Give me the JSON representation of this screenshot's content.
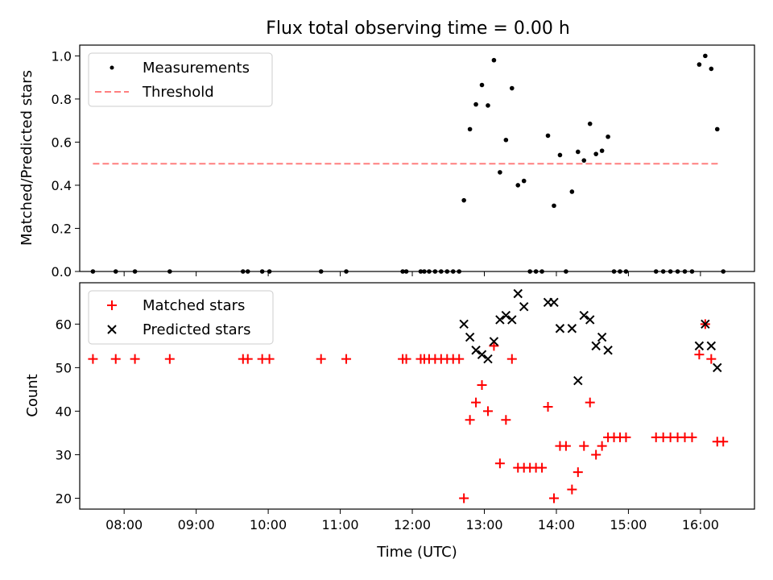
{
  "chart_data": [
    {
      "type": "scatter",
      "title": "Flux total observing time = 0.00 h",
      "ylabel": "Matched/Predicted stars",
      "xlabel": "",
      "x_is_time_of_day": true,
      "xlim": [
        "07:23",
        "16:45"
      ],
      "ylim": [
        0,
        1.05
      ],
      "yticks": [
        "0.0",
        "0.2",
        "0.4",
        "0.6",
        "0.8",
        "1.0"
      ],
      "xticks": [
        "08:00",
        "09:00",
        "10:00",
        "11:00",
        "12:00",
        "13:00",
        "14:00",
        "15:00",
        "16:00"
      ],
      "legend": {
        "position": "upper-left",
        "entries": [
          "Measurements",
          "Threshold"
        ]
      },
      "series": [
        {
          "name": "Measurements",
          "marker": "dot",
          "color": "#000000",
          "points": [
            [
              "07:34",
              0
            ],
            [
              "07:53",
              0
            ],
            [
              "08:09",
              0
            ],
            [
              "08:38",
              0
            ],
            [
              "09:39",
              0
            ],
            [
              "09:43",
              0
            ],
            [
              "09:55",
              0
            ],
            [
              "10:01",
              0
            ],
            [
              "10:44",
              0
            ],
            [
              "11:05",
              0
            ],
            [
              "11:52",
              0
            ],
            [
              "11:55",
              0
            ],
            [
              "12:07",
              0
            ],
            [
              "12:10",
              0
            ],
            [
              "12:14",
              0
            ],
            [
              "12:19",
              0
            ],
            [
              "12:24",
              0
            ],
            [
              "12:29",
              0
            ],
            [
              "12:34",
              0
            ],
            [
              "12:39",
              0
            ],
            [
              "12:43",
              0.33
            ],
            [
              "12:48",
              0.66
            ],
            [
              "12:53",
              0.775
            ],
            [
              "12:58",
              0.865
            ],
            [
              "13:03",
              0.77
            ],
            [
              "13:08",
              0.98
            ],
            [
              "13:13",
              0.46
            ],
            [
              "13:18",
              0.61
            ],
            [
              "13:23",
              0.85
            ],
            [
              "13:28",
              0.4
            ],
            [
              "13:33",
              0.42
            ],
            [
              "13:38",
              0
            ],
            [
              "13:43",
              0
            ],
            [
              "13:48",
              0
            ],
            [
              "13:53",
              0.63
            ],
            [
              "13:58",
              0.305
            ],
            [
              "14:03",
              0.54
            ],
            [
              "14:08",
              0
            ],
            [
              "14:13",
              0.37
            ],
            [
              "14:18",
              0.555
            ],
            [
              "14:23",
              0.515
            ],
            [
              "14:28",
              0.685
            ],
            [
              "14:33",
              0.545
            ],
            [
              "14:38",
              0.56
            ],
            [
              "14:43",
              0.625
            ],
            [
              "14:48",
              0
            ],
            [
              "14:53",
              0
            ],
            [
              "14:58",
              0
            ],
            [
              "15:23",
              0
            ],
            [
              "15:29",
              0
            ],
            [
              "15:35",
              0
            ],
            [
              "15:41",
              0
            ],
            [
              "15:47",
              0
            ],
            [
              "15:53",
              0
            ],
            [
              "15:59",
              0.96
            ],
            [
              "16:04",
              1.0
            ],
            [
              "16:09",
              0.94
            ],
            [
              "16:14",
              0.66
            ],
            [
              "16:19",
              0
            ]
          ]
        },
        {
          "name": "Threshold",
          "style": "dashed",
          "color": "#ff7f7f",
          "points": [
            [
              "07:34",
              0.5
            ],
            [
              "16:15",
              0.5
            ]
          ]
        }
      ]
    },
    {
      "type": "scatter",
      "title": "",
      "ylabel": "Count",
      "xlabel": "Time (UTC)",
      "x_is_time_of_day": true,
      "xlim": [
        "07:23",
        "16:45"
      ],
      "ylim": [
        17.5,
        69.5
      ],
      "yticks": [
        "20",
        "30",
        "40",
        "50",
        "60"
      ],
      "xticks": [
        "08:00",
        "09:00",
        "10:00",
        "11:00",
        "12:00",
        "13:00",
        "14:00",
        "15:00",
        "16:00"
      ],
      "legend": {
        "position": "upper-left",
        "entries": [
          "Matched stars",
          "Predicted stars"
        ]
      },
      "series": [
        {
          "name": "Matched stars",
          "marker": "plus",
          "color": "#ff0000",
          "points": [
            [
              "07:34",
              52
            ],
            [
              "07:53",
              52
            ],
            [
              "08:09",
              52
            ],
            [
              "08:38",
              52
            ],
            [
              "09:39",
              52
            ],
            [
              "09:43",
              52
            ],
            [
              "09:55",
              52
            ],
            [
              "10:01",
              52
            ],
            [
              "10:44",
              52
            ],
            [
              "11:05",
              52
            ],
            [
              "11:52",
              52
            ],
            [
              "11:55",
              52
            ],
            [
              "12:07",
              52
            ],
            [
              "12:10",
              52
            ],
            [
              "12:14",
              52
            ],
            [
              "12:19",
              52
            ],
            [
              "12:24",
              52
            ],
            [
              "12:29",
              52
            ],
            [
              "12:34",
              52
            ],
            [
              "12:39",
              52
            ],
            [
              "12:43",
              20
            ],
            [
              "12:48",
              38
            ],
            [
              "12:53",
              42
            ],
            [
              "12:58",
              46
            ],
            [
              "13:03",
              40
            ],
            [
              "13:08",
              55
            ],
            [
              "13:13",
              28
            ],
            [
              "13:18",
              38
            ],
            [
              "13:23",
              52
            ],
            [
              "13:28",
              27
            ],
            [
              "13:33",
              27
            ],
            [
              "13:38",
              27
            ],
            [
              "13:43",
              27
            ],
            [
              "13:48",
              27
            ],
            [
              "13:53",
              41
            ],
            [
              "13:58",
              20
            ],
            [
              "14:03",
              32
            ],
            [
              "14:08",
              32
            ],
            [
              "14:13",
              22
            ],
            [
              "14:18",
              26
            ],
            [
              "14:23",
              32
            ],
            [
              "14:28",
              42
            ],
            [
              "14:33",
              30
            ],
            [
              "14:38",
              32
            ],
            [
              "14:43",
              34
            ],
            [
              "14:48",
              34
            ],
            [
              "14:53",
              34
            ],
            [
              "14:58",
              34
            ],
            [
              "15:23",
              34
            ],
            [
              "15:29",
              34
            ],
            [
              "15:35",
              34
            ],
            [
              "15:41",
              34
            ],
            [
              "15:47",
              34
            ],
            [
              "15:53",
              34
            ],
            [
              "15:59",
              53
            ],
            [
              "16:04",
              60
            ],
            [
              "16:09",
              52
            ],
            [
              "16:14",
              33
            ],
            [
              "16:19",
              33
            ]
          ]
        },
        {
          "name": "Predicted stars",
          "marker": "x",
          "color": "#000000",
          "points": [
            [
              "12:43",
              60
            ],
            [
              "12:48",
              57
            ],
            [
              "12:53",
              54
            ],
            [
              "12:58",
              53
            ],
            [
              "13:03",
              52
            ],
            [
              "13:08",
              56
            ],
            [
              "13:13",
              61
            ],
            [
              "13:18",
              62
            ],
            [
              "13:23",
              61
            ],
            [
              "13:28",
              67
            ],
            [
              "13:33",
              64
            ],
            [
              "13:53",
              65
            ],
            [
              "13:58",
              65
            ],
            [
              "14:03",
              59
            ],
            [
              "14:13",
              59
            ],
            [
              "14:18",
              47
            ],
            [
              "14:23",
              62
            ],
            [
              "14:28",
              61
            ],
            [
              "14:33",
              55
            ],
            [
              "14:38",
              57
            ],
            [
              "14:43",
              54
            ],
            [
              "15:59",
              55
            ],
            [
              "16:04",
              60
            ],
            [
              "16:09",
              55
            ],
            [
              "16:14",
              50
            ]
          ]
        }
      ]
    }
  ]
}
